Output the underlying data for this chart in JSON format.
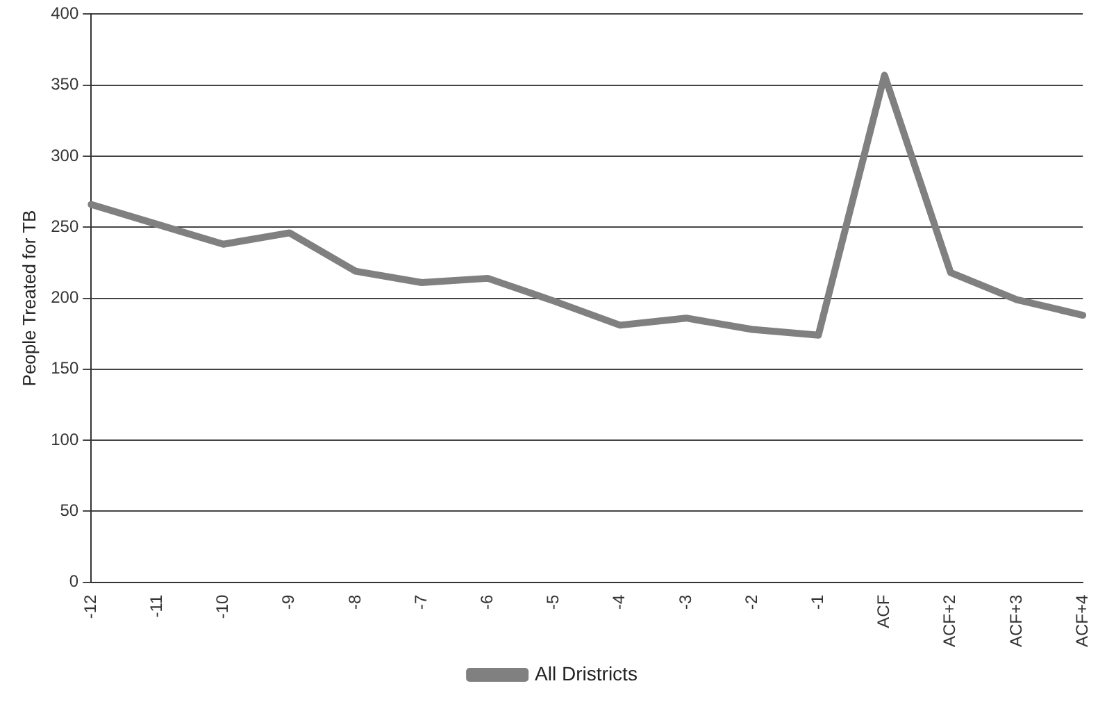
{
  "chart_data": {
    "type": "line",
    "ylabel": "People Treated for TB",
    "categories": [
      "-12",
      "-11",
      "-10",
      "-9",
      "-8",
      "-7",
      "-6",
      "-5",
      "-4",
      "-3",
      "-2",
      "-1",
      "ACF",
      "ACF+2",
      "ACF+3",
      "ACF+4"
    ],
    "series": [
      {
        "name": "All Dristricts",
        "color": "#808080",
        "values": [
          266,
          252,
          238,
          246,
          219,
          211,
          214,
          198,
          181,
          186,
          178,
          174,
          357,
          218,
          199,
          188
        ]
      }
    ],
    "ylim": [
      0,
      400
    ],
    "yticks": [
      0,
      50,
      100,
      150,
      200,
      250,
      300,
      350,
      400
    ],
    "grid": "y",
    "legend": "bottom",
    "marker": "none",
    "line_style": "solid"
  }
}
